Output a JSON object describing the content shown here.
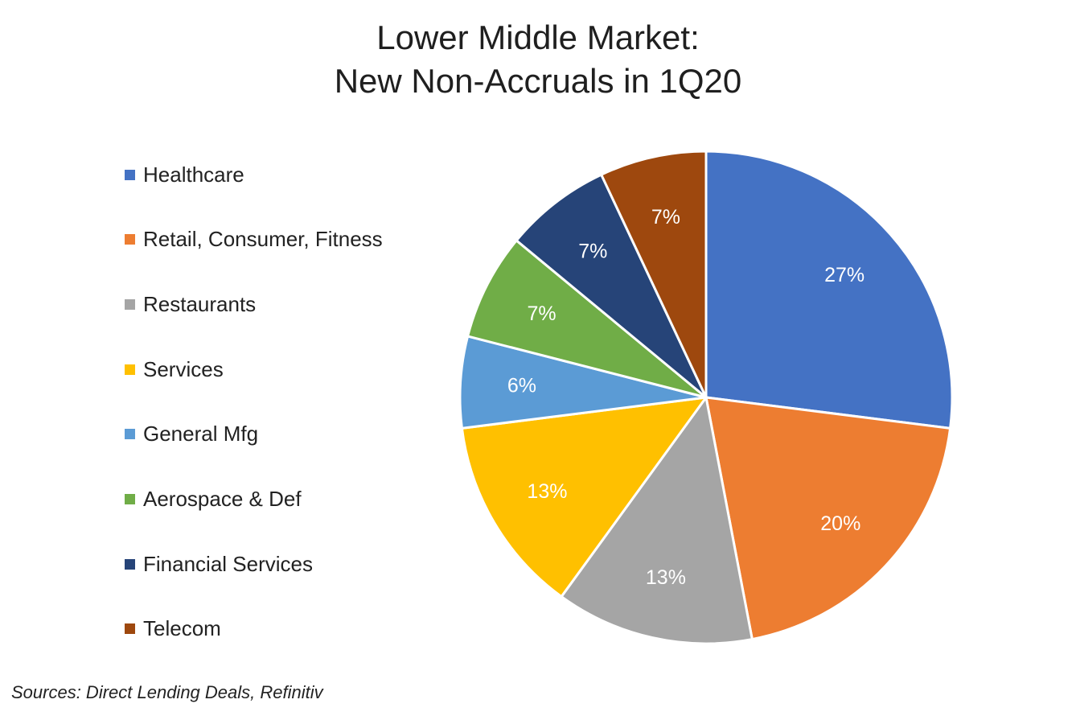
{
  "chart_data": {
    "type": "pie",
    "title_lines": [
      "Lower Middle Market:",
      "New Non-Accruals in 1Q20"
    ],
    "categories": [
      "Healthcare",
      "Retail, Consumer, Fitness",
      "Restaurants",
      "Services",
      "General Mfg",
      "Aerospace & Def",
      "Financial Services",
      "Telecom"
    ],
    "values": [
      27,
      20,
      13,
      13,
      6,
      7,
      7,
      7
    ],
    "value_labels": [
      "27%",
      "20%",
      "13%",
      "13%",
      "6%",
      "7%",
      "7%",
      "7%"
    ],
    "colors": [
      "#4472C4",
      "#ED7D31",
      "#A5A5A5",
      "#FFC000",
      "#5B9BD5",
      "#70AD47",
      "#264478",
      "#9E480E"
    ],
    "legend_position": "left",
    "start_angle_deg": 0,
    "direction": "clockwise"
  },
  "footer": {
    "source": "Sources: Direct Lending Deals, Refinitiv"
  }
}
